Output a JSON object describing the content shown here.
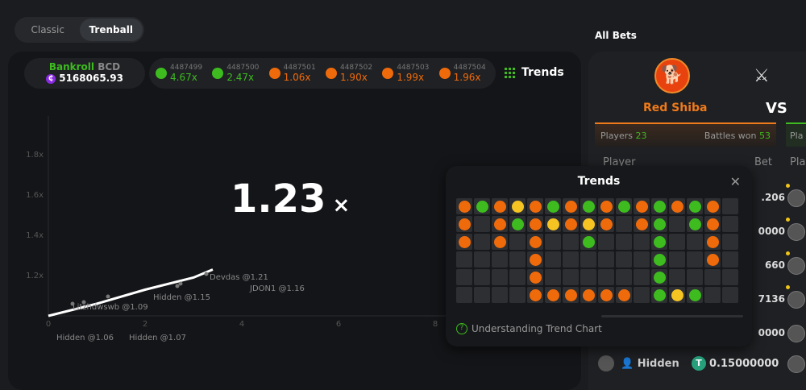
{
  "mode_tabs": [
    {
      "label": "Classic",
      "active": false
    },
    {
      "label": "Trenball",
      "active": true
    }
  ],
  "bankroll": {
    "label": "Bankroll",
    "currency": "BCD",
    "value": "5168065.93"
  },
  "history": [
    {
      "id": "4487499",
      "value": "4.67x",
      "color": "#3dbb1f"
    },
    {
      "id": "4487500",
      "value": "2.47x",
      "color": "#3dbb1f"
    },
    {
      "id": "4487501",
      "value": "1.06x",
      "color": "#ef6a0a"
    },
    {
      "id": "4487502",
      "value": "1.90x",
      "color": "#ef6a0a"
    },
    {
      "id": "4487503",
      "value": "1.99x",
      "color": "#ef6a0a"
    },
    {
      "id": "4487504",
      "value": "1.96x",
      "color": "#ef6a0a"
    }
  ],
  "trends_button": "Trends",
  "multiplier": {
    "value": "1.23",
    "suffix": "×"
  },
  "chart_data": {
    "type": "line",
    "y_ticks": [
      "1.2x",
      "1.4x",
      "1.6x",
      "1.8x"
    ],
    "x_ticks": [
      "0",
      "2",
      "4",
      "6",
      "8"
    ],
    "curve": [
      [
        0,
        1.0
      ],
      [
        1,
        1.06
      ],
      [
        2,
        1.13
      ],
      [
        3,
        1.19
      ],
      [
        3.4,
        1.23
      ]
    ],
    "cashouts": [
      "Devdas @1.21",
      "JDON1 @1.16",
      "Hidden @1.15",
      "Litzhdwswb @1.09",
      "Hidden @1.06",
      "Hidden @1.07"
    ]
  },
  "all_bets": {
    "title": "All Bets",
    "team": "Red Shiba",
    "vs": "VS",
    "players_label": "Players",
    "players": "23",
    "battles_label": "Battles won",
    "battles": "53",
    "other_players_label": "Pla",
    "col_player": "Player",
    "col_bet": "Bet",
    "col_player2": "Pla",
    "rows": [
      {
        "amount": ".206"
      },
      {
        "amount": "0000"
      },
      {
        "amount": "660"
      },
      {
        "amount": "7136"
      },
      {
        "amount": "0000"
      }
    ],
    "hidden_row": {
      "name": "Hidden",
      "amount": "0.15000000"
    }
  },
  "trends_popup": {
    "title": "Trends",
    "help": "Understanding Trend Chart",
    "grid": [
      "ogoyogogogogogo_",
      "o_ogoyoyo_og_go_",
      "o_o_o__g___g__o_",
      "____o______g__o_",
      "____o______g____",
      "____oooooo_gyg__"
    ],
    "colors": {
      "o": "#ef6a0a",
      "g": "#3dbb1f",
      "y": "#f5c422"
    }
  }
}
